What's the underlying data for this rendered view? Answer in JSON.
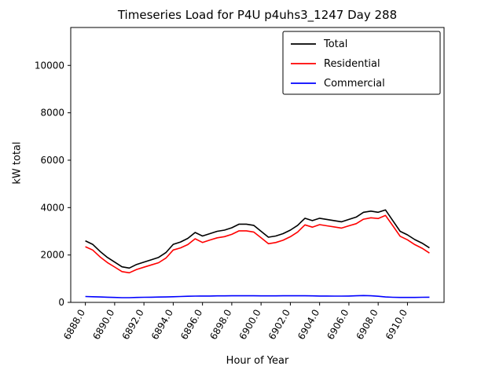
{
  "chart_data": {
    "type": "line",
    "title": "Timeseries Load for P4U p4uhs3_1247  Day 288",
    "xlabel": "Hour of Year",
    "ylabel": "kW total",
    "xlim": [
      6887.0,
      6912.5
    ],
    "ylim": [
      0,
      11600
    ],
    "xticks": [
      6888.0,
      6890.0,
      6892.0,
      6894.0,
      6896.0,
      6898.0,
      6900.0,
      6902.0,
      6904.0,
      6906.0,
      6908.0,
      6910.0
    ],
    "yticks": [
      0,
      2000,
      4000,
      6000,
      8000,
      10000
    ],
    "grid": false,
    "legend_position": "upper right",
    "x": [
      6888.0,
      6888.5,
      6889.0,
      6889.5,
      6890.0,
      6890.5,
      6891.0,
      6891.5,
      6892.0,
      6892.5,
      6893.0,
      6893.5,
      6894.0,
      6894.5,
      6895.0,
      6895.5,
      6896.0,
      6896.5,
      6897.0,
      6897.5,
      6898.0,
      6898.5,
      6899.0,
      6899.5,
      6900.0,
      6900.5,
      6901.0,
      6901.5,
      6902.0,
      6902.5,
      6903.0,
      6903.5,
      6904.0,
      6904.5,
      6905.0,
      6905.5,
      6906.0,
      6906.5,
      6907.0,
      6907.5,
      6908.0,
      6908.5,
      6909.0,
      6909.5,
      6910.0,
      6910.5,
      6911.0,
      6911.5
    ],
    "series": [
      {
        "name": "Total",
        "color": "#000000",
        "values": [
          2600,
          2450,
          2150,
          1900,
          1700,
          1500,
          1450,
          1600,
          1700,
          1800,
          1900,
          2100,
          2450,
          2550,
          2700,
          2950,
          2800,
          2900,
          3000,
          3050,
          3150,
          3300,
          3300,
          3250,
          3000,
          2750,
          2800,
          2900,
          3050,
          3250,
          3550,
          3450,
          3550,
          3500,
          3450,
          3400,
          3500,
          3600,
          3800,
          3850,
          3800,
          3900,
          3450,
          3000,
          2850,
          2650,
          2500,
          2300
        ]
      },
      {
        "name": "Residential",
        "color": "#ff0000",
        "values": [
          2350,
          2210,
          1920,
          1680,
          1490,
          1300,
          1250,
          1390,
          1485,
          1580,
          1675,
          1870,
          2210,
          2300,
          2440,
          2685,
          2530,
          2630,
          2725,
          2775,
          2870,
          3020,
          3020,
          2970,
          2725,
          2475,
          2525,
          2620,
          2770,
          2970,
          3270,
          3175,
          3280,
          3230,
          3185,
          3135,
          3230,
          3320,
          3510,
          3570,
          3540,
          3670,
          3235,
          2790,
          2640,
          2440,
          2285,
          2080
        ]
      },
      {
        "name": "Commercial",
        "color": "#0000ff",
        "values": [
          250,
          240,
          230,
          220,
          210,
          200,
          200,
          210,
          215,
          220,
          225,
          230,
          240,
          250,
          260,
          265,
          270,
          270,
          275,
          275,
          280,
          280,
          280,
          280,
          275,
          275,
          275,
          280,
          280,
          280,
          280,
          275,
          270,
          270,
          265,
          265,
          270,
          280,
          290,
          280,
          260,
          230,
          215,
          210,
          210,
          210,
          215,
          220
        ]
      }
    ]
  }
}
